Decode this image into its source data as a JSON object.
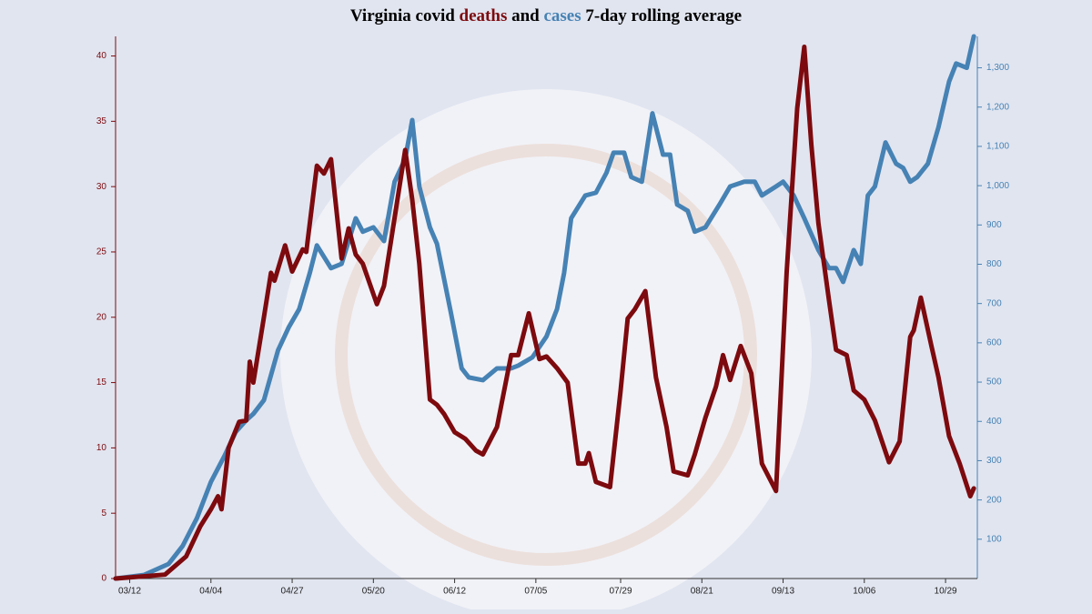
{
  "chart_data": {
    "type": "line",
    "title_parts": {
      "before": "Virginia covid",
      "between": "and",
      "after": "7-day rolling average"
    },
    "xlim": [
      "03/08",
      "11/07"
    ],
    "xticks": [
      "03/12",
      "04/04",
      "04/27",
      "05/20",
      "06/12",
      "07/05",
      "07/29",
      "08/21",
      "09/13",
      "10/06",
      "10/29"
    ],
    "ylim": [
      0,
      41.5
    ],
    "yticks": [
      0,
      5,
      10,
      15,
      20,
      25,
      30,
      35,
      40
    ],
    "y2lim": [
      0,
      1380
    ],
    "y2ticks": [
      100,
      200,
      300,
      400,
      500,
      600,
      700,
      800,
      900,
      {
        "value": 1000,
        "label": "1,000"
      },
      {
        "value": 1100,
        "label": "1,100"
      },
      {
        "value": 1200,
        "label": "1,200"
      },
      {
        "value": 1300,
        "label": "1,300"
      }
    ],
    "series": [
      {
        "name": "deaths",
        "color": "#7d0a0e",
        "axis": "y",
        "x": [
          "03/08",
          "03/22",
          "03/28",
          "04/01",
          "04/04",
          "04/06",
          "04/07",
          "04/09",
          "04/12",
          "04/14",
          "04/15",
          "04/16",
          "04/19",
          "04/21",
          "04/22",
          "04/25",
          "04/27",
          "04/30",
          "05/01",
          "05/04",
          "05/06",
          "05/08",
          "05/11",
          "05/13",
          "05/15",
          "05/17",
          "05/21",
          "05/23",
          "05/26",
          "05/29",
          "05/31",
          "06/02",
          "06/05",
          "06/07",
          "06/09",
          "06/12",
          "06/15",
          "06/18",
          "06/20",
          "06/24",
          "06/28",
          "06/30",
          "07/03",
          "07/06",
          "07/08",
          "07/11",
          "07/14",
          "07/17",
          "07/19",
          "07/20",
          "07/22",
          "07/26",
          "07/29",
          "07/31",
          "08/02",
          "08/05",
          "08/08",
          "08/11",
          "08/13",
          "08/17",
          "08/19",
          "08/22",
          "08/25",
          "08/27",
          "08/29",
          "09/01",
          "09/04",
          "09/07",
          "09/11",
          "09/14",
          "09/17",
          "09/19",
          "09/21",
          "09/23",
          "09/26",
          "09/28",
          "10/01",
          "10/03",
          "10/06",
          "10/09",
          "10/13",
          "10/16",
          "10/19",
          "10/20",
          "10/22",
          "10/25",
          "10/27",
          "10/30",
          "11/02",
          "11/05",
          "11/06"
        ],
        "values": [
          0,
          0.3,
          1.7,
          4,
          5.3,
          6.3,
          5.3,
          10,
          12,
          12.1,
          16.6,
          15,
          20,
          23.4,
          22.8,
          25.5,
          23.5,
          25.2,
          25,
          31.6,
          31,
          32.1,
          24.5,
          26.8,
          24.8,
          24.1,
          21,
          22.4,
          27.6,
          32.8,
          29,
          24.1,
          13.7,
          13.3,
          12.6,
          11.2,
          10.7,
          9.8,
          9.5,
          11.6,
          17.1,
          17.1,
          20.3,
          16.8,
          17,
          16.1,
          15,
          8.8,
          8.8,
          9.6,
          7.4,
          7,
          14.4,
          19.9,
          20.6,
          22,
          15.4,
          11.6,
          8.2,
          7.9,
          9.5,
          12.3,
          14.7,
          17.1,
          15.2,
          17.8,
          15.7,
          8.8,
          6.7,
          23.4,
          36,
          40.7,
          33.2,
          27.2,
          21.3,
          17.5,
          17.1,
          14.4,
          13.7,
          12.1,
          8.9,
          10.5,
          18.5,
          19,
          21.5,
          17.8,
          15.4,
          10.9,
          8.8,
          6.3,
          6.9
        ]
      },
      {
        "name": "cases",
        "color": "#4682b4",
        "axis": "y2",
        "x": [
          "03/08",
          "03/16",
          "03/23",
          "03/27",
          "03/31",
          "04/04",
          "04/08",
          "04/11",
          "04/14",
          "04/16",
          "04/19",
          "04/23",
          "04/26",
          "04/29",
          "05/02",
          "05/04",
          "05/08",
          "05/11",
          "05/15",
          "05/17",
          "05/20",
          "05/23",
          "05/26",
          "05/29",
          "05/31",
          "06/02",
          "06/05",
          "06/07",
          "06/11",
          "06/14",
          "06/16",
          "06/20",
          "06/24",
          "06/28",
          "06/30",
          "07/04",
          "07/08",
          "07/11",
          "07/13",
          "07/15",
          "07/19",
          "07/22",
          "07/25",
          "07/27",
          "07/30",
          "08/01",
          "08/04",
          "08/07",
          "08/10",
          "08/12",
          "08/14",
          "08/17",
          "08/19",
          "08/22",
          "08/26",
          "08/29",
          "09/02",
          "09/05",
          "09/07",
          "09/11",
          "09/13",
          "09/16",
          "09/19",
          "09/23",
          "09/26",
          "09/28",
          "09/30",
          "10/03",
          "10/05",
          "10/07",
          "10/09",
          "10/12",
          "10/15",
          "10/17",
          "10/19",
          "10/21",
          "10/24",
          "10/27",
          "10/30",
          "11/01",
          "11/04",
          "11/06"
        ],
        "values": [
          0,
          9,
          37,
          83,
          153,
          246,
          315,
          373,
          403,
          419,
          454,
          581,
          639,
          686,
          778,
          848,
          790,
          801,
          917,
          883,
          894,
          859,
          1010,
          1068,
          1167,
          998,
          894,
          852,
          674,
          535,
          512,
          505,
          535,
          535,
          542,
          563,
          616,
          686,
          778,
          917,
          975,
          982,
          1033,
          1084,
          1084,
          1022,
          1010,
          1184,
          1079,
          1079,
          952,
          936,
          883,
          894,
          952,
          998,
          1010,
          1010,
          975,
          998,
          1010,
          975,
          917,
          836,
          790,
          790,
          755,
          836,
          801,
          975,
          998,
          1110,
          1056,
          1045,
          1010,
          1022,
          1056,
          1149,
          1265,
          1311,
          1300,
          1380
        ]
      }
    ]
  }
}
